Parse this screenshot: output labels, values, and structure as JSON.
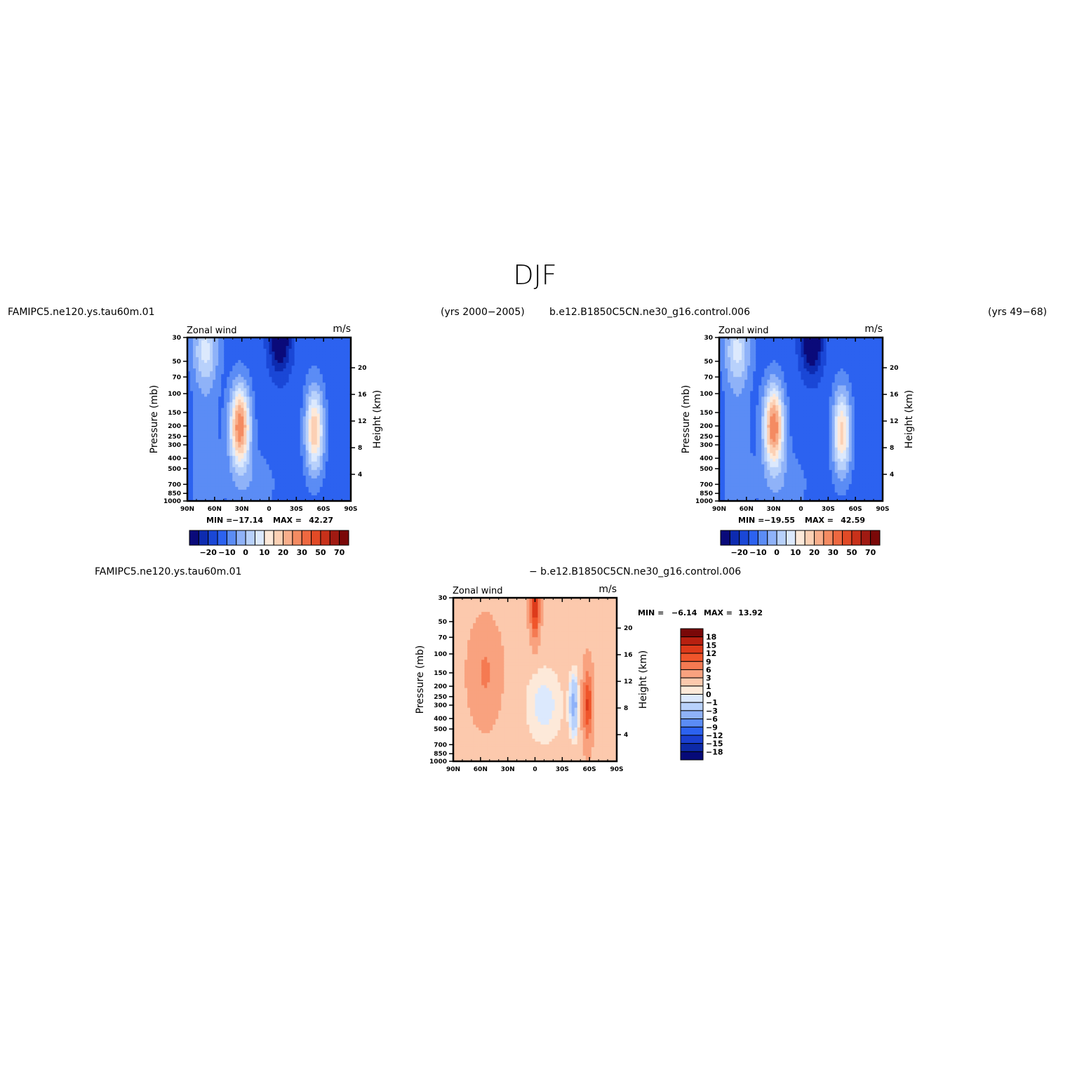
{
  "figure": {
    "title": "DJF"
  },
  "panels": [
    {
      "case_name": "FAMIPC5.ne120.ys.tau60m.01",
      "years": "(yrs 2000−2005)"
    },
    {
      "case_name": "b.e12.B1850C5CN.ne30_g16.control.006",
      "years": "(yrs 49−68)"
    },
    {
      "case_name": "FAMIPC5.ne120.ys.tau60m.01",
      "case_name_2": "− b.e12.B1850C5CN.ne30_g16.control.006"
    }
  ],
  "chart_data": [
    {
      "type": "heatmap",
      "title": "Zonal wind",
      "units": "m/s",
      "ylabel": "Pressure (mb)",
      "ylabel_right": "Height (km)",
      "x_ticks": [
        "90N",
        "60N",
        "30N",
        "0",
        "30S",
        "60S",
        "90S"
      ],
      "y_ticks": [
        30,
        50,
        70,
        100,
        150,
        200,
        250,
        300,
        400,
        500,
        700,
        850,
        1000
      ],
      "y_right_ticks": [
        20,
        16,
        12,
        8,
        4
      ],
      "ylim": [
        1000,
        30
      ],
      "log_y": true,
      "stats": {
        "min_label": "MIN =",
        "min": "−17.14",
        "max_label": "MAX =",
        "max": "42.27"
      },
      "jets": [
        {
          "lat": 32,
          "pressure": 200,
          "peak": 42.27
        },
        {
          "lat": -50,
          "pressure": 220,
          "peak": 32
        }
      ],
      "colorbar": {
        "orientation": "horizontal",
        "levels": [
          -25,
          -20,
          -15,
          -10,
          -5,
          0,
          5,
          10,
          15,
          20,
          25,
          30,
          40,
          50,
          60,
          70,
          80
        ],
        "labels": [
          "−20",
          "−10",
          "0",
          "10",
          "20",
          "30",
          "50",
          "70"
        ],
        "colors": [
          "#0a0a7a",
          "#0d2bb0",
          "#1a47d6",
          "#2c62f0",
          "#5b8cf5",
          "#8fb2f8",
          "#b8d1fb",
          "#dce9fd",
          "#fde9d9",
          "#fcd0b4",
          "#f8ae8b",
          "#f48b62",
          "#ee6840",
          "#e14a26",
          "#c8311a",
          "#a01a12",
          "#7a0808"
        ]
      }
    },
    {
      "type": "heatmap",
      "title": "Zonal wind",
      "units": "m/s",
      "ylabel": "Pressure (mb)",
      "ylabel_right": "Height (km)",
      "x_ticks": [
        "90N",
        "60N",
        "30N",
        "0",
        "30S",
        "60S",
        "90S"
      ],
      "y_ticks": [
        30,
        50,
        70,
        100,
        150,
        200,
        250,
        300,
        400,
        500,
        700,
        850,
        1000
      ],
      "y_right_ticks": [
        20,
        16,
        12,
        8,
        4
      ],
      "ylim": [
        1000,
        30
      ],
      "log_y": true,
      "stats": {
        "min_label": "MIN =",
        "min": "−19.55",
        "max_label": "MAX =",
        "max": "42.59"
      },
      "jets": [
        {
          "lat": 30,
          "pressure": 200,
          "peak": 42.59
        },
        {
          "lat": -45,
          "pressure": 230,
          "peak": 30
        }
      ],
      "colorbar": {
        "orientation": "horizontal",
        "levels": [
          -25,
          -20,
          -15,
          -10,
          -5,
          0,
          5,
          10,
          15,
          20,
          25,
          30,
          40,
          50,
          60,
          70,
          80
        ],
        "labels": [
          "−20",
          "−10",
          "0",
          "10",
          "20",
          "30",
          "50",
          "70"
        ],
        "colors": [
          "#0a0a7a",
          "#0d2bb0",
          "#1a47d6",
          "#2c62f0",
          "#5b8cf5",
          "#8fb2f8",
          "#b8d1fb",
          "#dce9fd",
          "#fde9d9",
          "#fcd0b4",
          "#f8ae8b",
          "#f48b62",
          "#ee6840",
          "#e14a26",
          "#c8311a",
          "#a01a12",
          "#7a0808"
        ]
      }
    },
    {
      "type": "heatmap",
      "title": "Zonal wind",
      "units": "m/s",
      "ylabel": "Pressure (mb)",
      "ylabel_right": "Height (km)",
      "x_ticks": [
        "90N",
        "60N",
        "30N",
        "0",
        "30S",
        "60S",
        "90S"
      ],
      "y_ticks": [
        30,
        50,
        70,
        100,
        150,
        200,
        250,
        300,
        400,
        500,
        700,
        850,
        1000
      ],
      "y_right_ticks": [
        20,
        16,
        12,
        8,
        4
      ],
      "ylim": [
        1000,
        30
      ],
      "log_y": true,
      "stats": {
        "min_label": "MIN =",
        "min": "−6.14",
        "max_label": "MAX =",
        "max": "13.92"
      },
      "features": [
        {
          "lat": 0,
          "pressure": 35,
          "value": 12
        },
        {
          "lat": -58,
          "pressure": 300,
          "value": 10
        },
        {
          "lat": -43,
          "pressure": 300,
          "value": -6
        }
      ],
      "colorbar": {
        "orientation": "vertical",
        "levels": [
          -18,
          -15,
          -12,
          -9,
          -6,
          -3,
          -1,
          0,
          1,
          3,
          6,
          9,
          12,
          15,
          18
        ],
        "labels": [
          "18",
          "15",
          "12",
          "9",
          "6",
          "3",
          "1",
          "0",
          "−1",
          "−3",
          "−6",
          "−9",
          "−12",
          "−15",
          "−18"
        ],
        "colors": [
          "#7a0808",
          "#b82010",
          "#de3a1a",
          "#f0552b",
          "#f57a52",
          "#f9a27f",
          "#fcc9ad",
          "#fde9d9",
          "#dce9fd",
          "#b8d1fb",
          "#8fb2f8",
          "#5b8cf5",
          "#2c62f0",
          "#1a3fd0",
          "#0d2aa8",
          "#060a78"
        ]
      }
    }
  ]
}
